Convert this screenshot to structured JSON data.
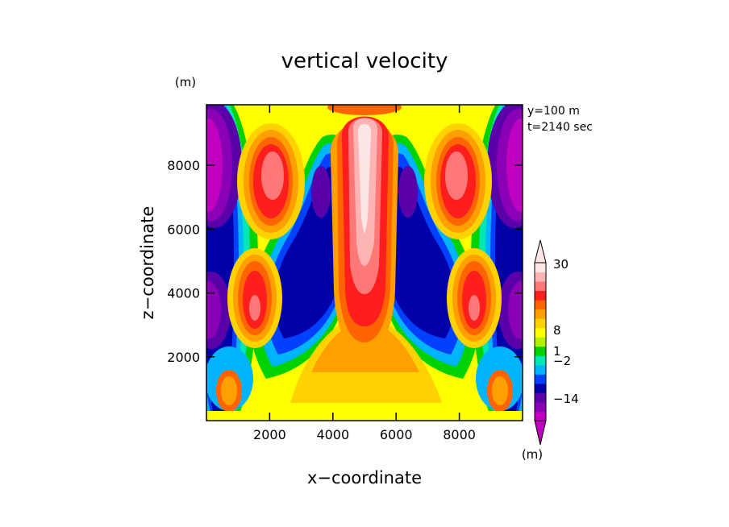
{
  "chart_data": {
    "type": "heatmap",
    "title": "vertical velocity",
    "xlabel": "x−coordinate",
    "ylabel": "z−coordinate",
    "y_unit": "(m)",
    "colorbar_unit": "(m)",
    "info_lines": [
      "y=100 m",
      "t=2140 sec"
    ],
    "xlim": [
      0,
      10000
    ],
    "ylim": [
      0,
      9900
    ],
    "xticks": [
      2000,
      4000,
      6000,
      8000
    ],
    "xtick_labels": [
      "2000",
      "4000",
      "6000",
      "8000"
    ],
    "yticks": [
      2000,
      4000,
      6000,
      8000
    ],
    "ytick_labels": [
      "2000",
      "4000",
      "6000",
      "8000"
    ],
    "colorbar": {
      "colors": [
        "#c000c0",
        "#8a00b4",
        "#5a00a8",
        "#0000a8",
        "#0040ff",
        "#00b4ff",
        "#00e6b4",
        "#00d200",
        "#b4f000",
        "#ffff00",
        "#ffd200",
        "#ffa000",
        "#ff6400",
        "#ff1e1e",
        "#ff7878",
        "#ffb4b4",
        "#ffe6e6"
      ],
      "labels": [
        "30",
        "8",
        "1",
        "−2",
        "−14"
      ],
      "label_values": [
        30,
        8,
        1,
        -2,
        -14
      ]
    },
    "colors": {
      "yellow": "#ffff00",
      "light_orange": "#ffd200",
      "orange": "#ffa000",
      "dark_orange": "#ff6400",
      "red": "#ff1e1e",
      "salmon": "#ff7878",
      "pink": "#ffb4b4",
      "light_pink": "#ffe6e6",
      "green": "#00d200",
      "cyan": "#00b4ff",
      "teal": "#00e6b4",
      "blue": "#0040ff",
      "navy": "#0000a8",
      "purple": "#5a00a8",
      "violet": "#8a00b4",
      "magenta": "#c000c0"
    }
  }
}
